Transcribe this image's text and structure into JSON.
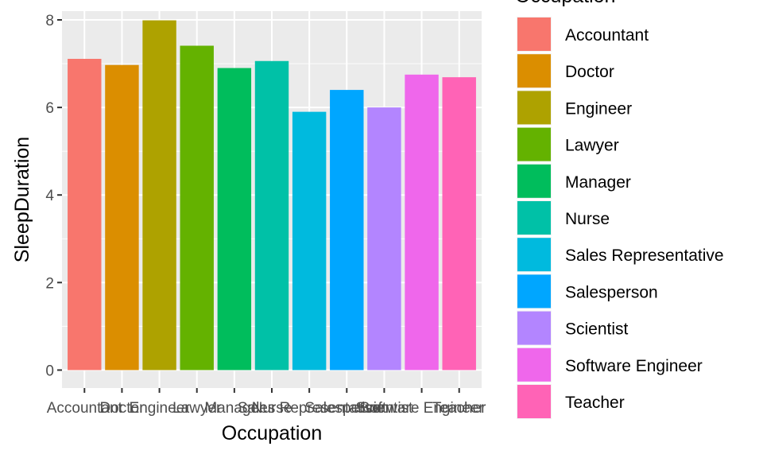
{
  "chart_data": {
    "type": "bar",
    "title": "",
    "xlabel": "Occupation",
    "ylabel": "SleepDuration",
    "ylim": [
      0,
      8.2
    ],
    "yticks": [
      0,
      2,
      4,
      6,
      8
    ],
    "grid": true,
    "legend": {
      "title": "Occupation",
      "position": "right"
    },
    "categories": [
      "Accountant",
      "Doctor",
      "Engineer",
      "Lawyer",
      "Manager",
      "Nurse",
      "Sales Representative",
      "Salesperson",
      "Scientist",
      "Software Engineer",
      "Teacher"
    ],
    "values": [
      7.11,
      6.97,
      7.99,
      7.41,
      6.9,
      7.06,
      5.9,
      6.4,
      6.0,
      6.75,
      6.69
    ],
    "colors": [
      "#F8766D",
      "#DB8E00",
      "#AEA200",
      "#64B200",
      "#00BD5C",
      "#00C1A7",
      "#00BADE",
      "#00A6FF",
      "#B385FF",
      "#EF67EB",
      "#FF63B6"
    ]
  }
}
